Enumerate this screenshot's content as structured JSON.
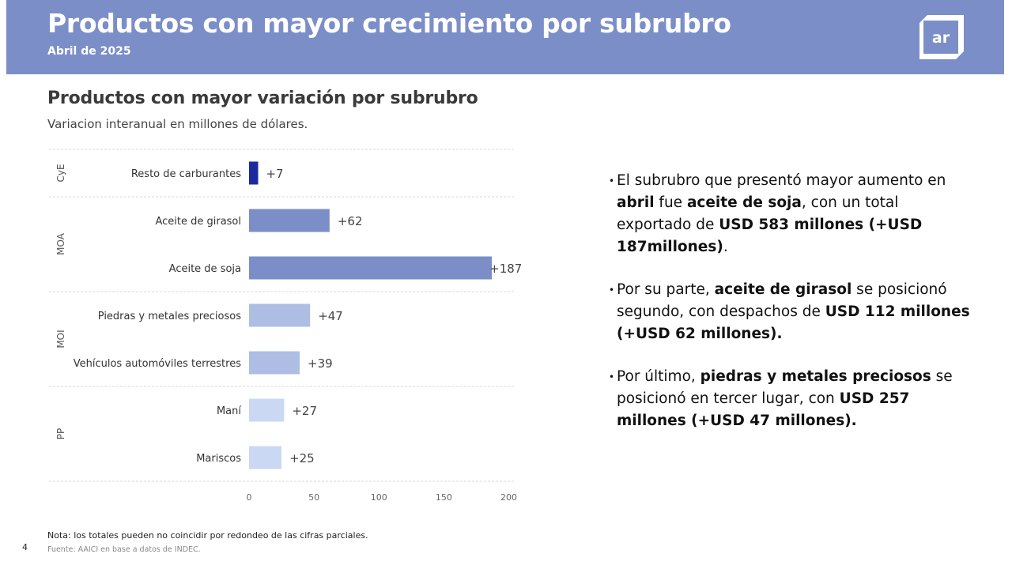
{
  "header": {
    "title": "Productos con mayor crecimiento por subrubro",
    "subtitle": "Abril de 2025",
    "logo_text": "ar"
  },
  "chart_data": {
    "type": "bar",
    "orientation": "horizontal",
    "title": "Productos con mayor variación por subrubro",
    "subtitle": "Variacion interanual en millones de dólares.",
    "groups": [
      "CyE",
      "MOA",
      "MOI",
      "PP"
    ],
    "categories": [
      "Resto de carburantes",
      "Aceite de girasol",
      "Aceite de soja",
      "Piedras y metales preciosos",
      "Vehículos automóviles terrestres",
      "Maní",
      "Mariscos"
    ],
    "category_groups": [
      "CyE",
      "MOA",
      "MOA",
      "MOI",
      "MOI",
      "PP",
      "PP"
    ],
    "values": [
      7,
      62,
      187,
      47,
      39,
      27,
      25
    ],
    "value_labels": [
      "+7",
      "+62",
      "+187",
      "+47",
      "+39",
      "+27",
      "+25"
    ],
    "group_colors": {
      "CyE": "#1b2a9c",
      "MOA": "#7b8ec8",
      "MOI": "#aebde4",
      "PP": "#cbd8f4"
    },
    "xticks": [
      0,
      50,
      100,
      150,
      200
    ],
    "xlim": [
      0,
      200
    ],
    "xlabel": "",
    "ylabel": ""
  },
  "bullets": [
    [
      {
        "t": "El subrubro que presentó mayor aumento en ",
        "b": false
      },
      {
        "t": "abril",
        "b": true
      },
      {
        "t": " fue ",
        "b": false
      },
      {
        "t": "aceite de soja",
        "b": true
      },
      {
        "t": ", con un total exportado de ",
        "b": false
      },
      {
        "t": "USD 583 millones (+USD 187millones)",
        "b": true
      },
      {
        "t": ".",
        "b": false
      }
    ],
    [
      {
        "t": "Por su parte, ",
        "b": false
      },
      {
        "t": "aceite de girasol",
        "b": true
      },
      {
        "t": " se posicionó segundo, con despachos de ",
        "b": false
      },
      {
        "t": "USD 112 millones (+USD 62 millones).",
        "b": true
      }
    ],
    [
      {
        "t": "Por último, ",
        "b": false
      },
      {
        "t": "piedras y metales preciosos",
        "b": true
      },
      {
        "t": " se posicionó en tercer lugar, con ",
        "b": false
      },
      {
        "t": "USD 257 millones (+USD 47 millones).",
        "b": true
      }
    ]
  ],
  "footer": {
    "note": "Nota: los totales pueden no coincidir por redondeo de las cifras parciales.",
    "source": "Fuente: AAICI en base a datos de INDEC.",
    "page_number": "4"
  }
}
